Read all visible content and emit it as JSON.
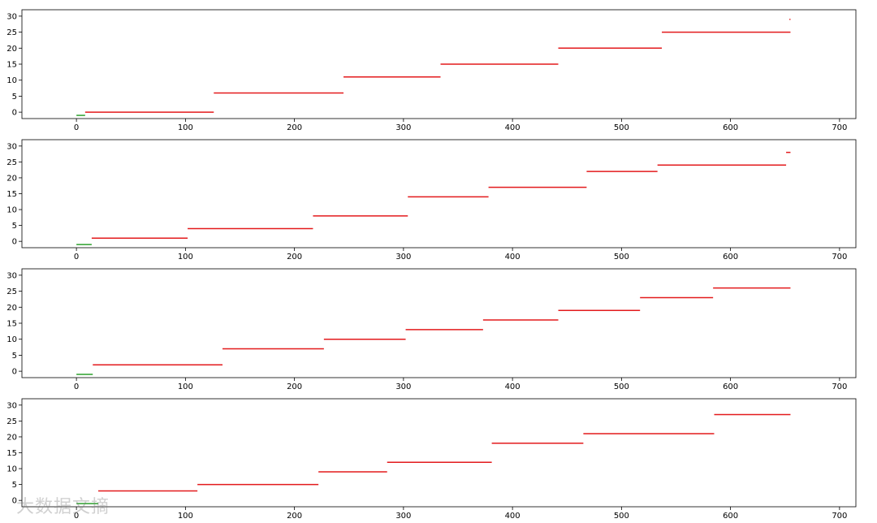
{
  "watermark_text": "大数据文摘",
  "colors": {
    "segment": "#e31a1c",
    "start_segment": "#2ca02c",
    "axis": "#000000"
  },
  "chart_data": [
    {
      "type": "line",
      "xlim": [
        -50,
        715
      ],
      "ylim": [
        -2,
        32
      ],
      "xticks": [
        0,
        100,
        200,
        300,
        400,
        500,
        600,
        700
      ],
      "yticks": [
        0,
        5,
        10,
        15,
        20,
        25,
        30
      ],
      "grid": false,
      "segments": [
        {
          "x": [
            0,
            8
          ],
          "y": -1,
          "color": "green"
        },
        {
          "x": [
            8,
            126
          ],
          "y": 0,
          "color": "red"
        },
        {
          "x": [
            126,
            245
          ],
          "y": 6,
          "color": "red"
        },
        {
          "x": [
            245,
            334
          ],
          "y": 11,
          "color": "red"
        },
        {
          "x": [
            334,
            442
          ],
          "y": 15,
          "color": "red"
        },
        {
          "x": [
            442,
            537
          ],
          "y": 20,
          "color": "red"
        },
        {
          "x": [
            537,
            655
          ],
          "y": 25,
          "color": "red"
        },
        {
          "x": [
            654,
            655
          ],
          "y": 29,
          "color": "red"
        }
      ]
    },
    {
      "type": "line",
      "xlim": [
        -50,
        715
      ],
      "ylim": [
        -2,
        32
      ],
      "xticks": [
        0,
        100,
        200,
        300,
        400,
        500,
        600,
        700
      ],
      "yticks": [
        0,
        5,
        10,
        15,
        20,
        25,
        30
      ],
      "grid": false,
      "segments": [
        {
          "x": [
            0,
            14
          ],
          "y": -1,
          "color": "green"
        },
        {
          "x": [
            14,
            102
          ],
          "y": 1,
          "color": "red"
        },
        {
          "x": [
            102,
            217
          ],
          "y": 4,
          "color": "red"
        },
        {
          "x": [
            217,
            304
          ],
          "y": 8,
          "color": "red"
        },
        {
          "x": [
            304,
            378
          ],
          "y": 14,
          "color": "red"
        },
        {
          "x": [
            378,
            468
          ],
          "y": 17,
          "color": "red"
        },
        {
          "x": [
            468,
            533
          ],
          "y": 22,
          "color": "red"
        },
        {
          "x": [
            533,
            651
          ],
          "y": 24,
          "color": "red"
        },
        {
          "x": [
            651,
            655
          ],
          "y": 28,
          "color": "red"
        }
      ]
    },
    {
      "type": "line",
      "xlim": [
        -50,
        715
      ],
      "ylim": [
        -2,
        32
      ],
      "xticks": [
        0,
        100,
        200,
        300,
        400,
        500,
        600,
        700
      ],
      "yticks": [
        0,
        5,
        10,
        15,
        20,
        25,
        30
      ],
      "grid": false,
      "segments": [
        {
          "x": [
            0,
            15
          ],
          "y": -1,
          "color": "green"
        },
        {
          "x": [
            15,
            134
          ],
          "y": 2,
          "color": "red"
        },
        {
          "x": [
            134,
            227
          ],
          "y": 7,
          "color": "red"
        },
        {
          "x": [
            227,
            302
          ],
          "y": 10,
          "color": "red"
        },
        {
          "x": [
            302,
            373
          ],
          "y": 13,
          "color": "red"
        },
        {
          "x": [
            373,
            442
          ],
          "y": 16,
          "color": "red"
        },
        {
          "x": [
            442,
            517
          ],
          "y": 19,
          "color": "red"
        },
        {
          "x": [
            517,
            584
          ],
          "y": 23,
          "color": "red"
        },
        {
          "x": [
            584,
            655
          ],
          "y": 26,
          "color": "red"
        }
      ]
    },
    {
      "type": "line",
      "xlim": [
        -50,
        715
      ],
      "ylim": [
        -2,
        32
      ],
      "xticks": [
        0,
        100,
        200,
        300,
        400,
        500,
        600,
        700
      ],
      "yticks": [
        0,
        5,
        10,
        15,
        20,
        25,
        30
      ],
      "grid": false,
      "segments": [
        {
          "x": [
            0,
            20
          ],
          "y": -1,
          "color": "green"
        },
        {
          "x": [
            20,
            111
          ],
          "y": 3,
          "color": "red"
        },
        {
          "x": [
            111,
            222
          ],
          "y": 5,
          "color": "red"
        },
        {
          "x": [
            222,
            285
          ],
          "y": 9,
          "color": "red"
        },
        {
          "x": [
            285,
            381
          ],
          "y": 12,
          "color": "red"
        },
        {
          "x": [
            381,
            465
          ],
          "y": 18,
          "color": "red"
        },
        {
          "x": [
            465,
            585
          ],
          "y": 21,
          "color": "red"
        },
        {
          "x": [
            585,
            655
          ],
          "y": 27,
          "color": "red"
        }
      ]
    }
  ]
}
